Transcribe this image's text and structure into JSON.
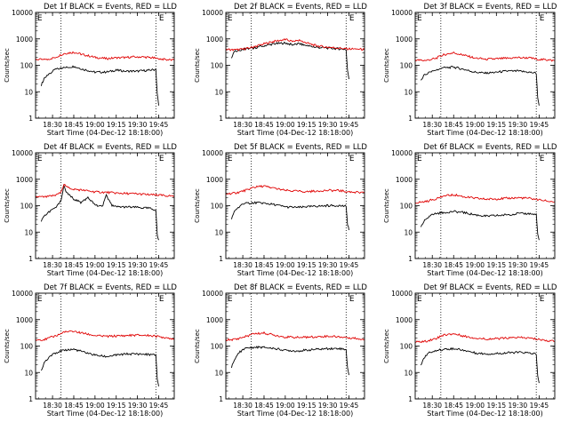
{
  "figure": {
    "xlabel": "Start Time (04-Dec-12 18:18:00)",
    "ylabel": "Counts/sec",
    "x_tick_labels": [
      "18:30",
      "18:45",
      "19:00",
      "19:15",
      "19:30",
      "19:45"
    ],
    "y_tick_labels": [
      "1",
      "10",
      "100",
      "1000",
      "10000"
    ],
    "marker_E": "E",
    "colors": {
      "events": "#000000",
      "lld": "#e00000",
      "axes": "#000000"
    }
  },
  "chart_data": [
    {
      "type": "line",
      "title": "Det 1f BLACK = Events, RED = LLD",
      "xlabel": "Start Time (04-Dec-12 18:18:00)",
      "ylabel": "Counts/sec",
      "y_scale": "log",
      "ylim": [
        1,
        10000
      ],
      "xlim": [
        "18:18",
        "19:56"
      ],
      "grid": false,
      "vertical_dotted_lines": [
        "18:36",
        "19:43"
      ],
      "markers_E": [
        "18:21",
        "19:47"
      ],
      "series": [
        {
          "name": "Events",
          "color": "#000000",
          "x": [
            "18:22",
            "18:24",
            "18:28",
            "18:32",
            "18:38",
            "18:45",
            "18:52",
            "19:00",
            "19:08",
            "19:15",
            "19:22",
            "19:30",
            "19:38",
            "19:43",
            "19:44",
            "19:45"
          ],
          "y": [
            18,
            30,
            50,
            70,
            80,
            90,
            70,
            55,
            55,
            65,
            60,
            60,
            65,
            70,
            8,
            3
          ]
        },
        {
          "name": "LLD",
          "color": "#e00000",
          "x": [
            "18:18",
            "18:25",
            "18:32",
            "18:38",
            "18:45",
            "18:52",
            "19:00",
            "19:08",
            "19:15",
            "19:22",
            "19:30",
            "19:38",
            "19:44",
            "19:50",
            "19:56"
          ],
          "y": [
            170,
            160,
            200,
            280,
            310,
            250,
            200,
            180,
            190,
            200,
            210,
            200,
            180,
            165,
            155
          ]
        }
      ]
    },
    {
      "type": "line",
      "title": "Det 2f BLACK = Events, RED = LLD",
      "xlabel": "Start Time (04-Dec-12 18:18:00)",
      "ylabel": "Counts/sec",
      "y_scale": "log",
      "ylim": [
        1,
        10000
      ],
      "xlim": [
        "18:18",
        "19:56"
      ],
      "grid": false,
      "vertical_dotted_lines": [
        "18:36",
        "19:43"
      ],
      "markers_E": [
        "18:21",
        "19:47"
      ],
      "series": [
        {
          "name": "Events",
          "color": "#000000",
          "x": [
            "18:22",
            "18:24",
            "18:28",
            "18:32",
            "18:38",
            "18:45",
            "18:52",
            "19:00",
            "19:05",
            "19:10",
            "19:15",
            "19:22",
            "19:30",
            "19:38",
            "19:43",
            "19:44",
            "19:45"
          ],
          "y": [
            200,
            350,
            380,
            420,
            450,
            550,
            650,
            700,
            600,
            650,
            550,
            480,
            450,
            420,
            400,
            60,
            30
          ]
        },
        {
          "name": "LLD",
          "color": "#e00000",
          "x": [
            "18:18",
            "18:25",
            "18:32",
            "18:38",
            "18:45",
            "18:52",
            "19:00",
            "19:05",
            "19:10",
            "19:15",
            "19:22",
            "19:30",
            "19:38",
            "19:44",
            "19:50",
            "19:56"
          ],
          "y": [
            400,
            380,
            420,
            500,
            650,
            800,
            950,
            800,
            900,
            700,
            550,
            480,
            450,
            420,
            410,
            400
          ]
        }
      ]
    },
    {
      "type": "line",
      "title": "Det 3f BLACK = Events, RED = LLD",
      "xlabel": "Start Time (04-Dec-12 18:18:00)",
      "ylabel": "Counts/sec",
      "y_scale": "log",
      "ylim": [
        1,
        10000
      ],
      "xlim": [
        "18:18",
        "19:56"
      ],
      "grid": false,
      "vertical_dotted_lines": [
        "18:36",
        "19:43"
      ],
      "markers_E": [
        "18:21",
        "19:47"
      ],
      "series": [
        {
          "name": "Events",
          "color": "#000000",
          "x": [
            "18:22",
            "18:24",
            "18:28",
            "18:32",
            "18:38",
            "18:45",
            "18:52",
            "19:00",
            "19:08",
            "19:15",
            "19:22",
            "19:30",
            "19:38",
            "19:43",
            "19:44",
            "19:45"
          ],
          "y": [
            25,
            40,
            55,
            65,
            80,
            85,
            70,
            55,
            50,
            55,
            60,
            60,
            55,
            50,
            6,
            3
          ]
        },
        {
          "name": "LLD",
          "color": "#e00000",
          "x": [
            "18:18",
            "18:25",
            "18:32",
            "18:38",
            "18:45",
            "18:52",
            "19:00",
            "19:08",
            "19:15",
            "19:22",
            "19:30",
            "19:38",
            "19:44",
            "19:50",
            "19:56"
          ],
          "y": [
            160,
            150,
            180,
            250,
            300,
            240,
            190,
            170,
            175,
            185,
            195,
            190,
            170,
            160,
            150
          ]
        }
      ]
    },
    {
      "type": "line",
      "title": "Det 4f BLACK = Events, RED = LLD",
      "xlabel": "Start Time (04-Dec-12 18:18:00)",
      "ylabel": "Counts/sec",
      "y_scale": "log",
      "ylim": [
        1,
        10000
      ],
      "xlim": [
        "18:18",
        "19:56"
      ],
      "grid": false,
      "vertical_dotted_lines": [
        "18:36",
        "19:43"
      ],
      "markers_E": [
        "18:21",
        "19:47"
      ],
      "series": [
        {
          "name": "Events",
          "color": "#000000",
          "x": [
            "18:22",
            "18:24",
            "18:28",
            "18:32",
            "18:36",
            "18:38",
            "18:40",
            "18:45",
            "18:50",
            "18:55",
            "19:00",
            "19:05",
            "19:08",
            "19:12",
            "19:15",
            "19:22",
            "19:30",
            "19:38",
            "19:43",
            "19:44",
            "19:45"
          ],
          "y": [
            25,
            40,
            60,
            80,
            150,
            550,
            300,
            180,
            130,
            200,
            110,
            90,
            250,
            100,
            90,
            90,
            85,
            80,
            70,
            8,
            5
          ]
        },
        {
          "name": "LLD",
          "color": "#e00000",
          "x": [
            "18:18",
            "18:25",
            "18:32",
            "18:36",
            "18:38",
            "18:40",
            "18:45",
            "18:52",
            "19:00",
            "19:08",
            "19:15",
            "19:22",
            "19:30",
            "19:38",
            "19:44",
            "19:50",
            "19:56"
          ],
          "y": [
            220,
            210,
            250,
            320,
            650,
            500,
            420,
            380,
            330,
            320,
            300,
            290,
            280,
            260,
            250,
            240,
            230
          ]
        }
      ]
    },
    {
      "type": "line",
      "title": "Det 5f BLACK = Events, RED = LLD",
      "xlabel": "Start Time (04-Dec-12 18:18:00)",
      "ylabel": "Counts/sec",
      "y_scale": "log",
      "ylim": [
        1,
        10000
      ],
      "xlim": [
        "18:18",
        "19:56"
      ],
      "grid": false,
      "vertical_dotted_lines": [
        "18:36",
        "19:43"
      ],
      "markers_E": [
        "18:21",
        "19:47"
      ],
      "series": [
        {
          "name": "Events",
          "color": "#000000",
          "x": [
            "18:22",
            "18:24",
            "18:28",
            "18:32",
            "18:38",
            "18:45",
            "18:52",
            "19:00",
            "19:08",
            "19:15",
            "19:22",
            "19:30",
            "19:38",
            "19:43",
            "19:44",
            "19:45"
          ],
          "y": [
            30,
            60,
            100,
            120,
            130,
            125,
            110,
            90,
            85,
            90,
            95,
            100,
            100,
            95,
            20,
            12
          ]
        },
        {
          "name": "LLD",
          "color": "#e00000",
          "x": [
            "18:18",
            "18:25",
            "18:32",
            "18:38",
            "18:45",
            "18:52",
            "19:00",
            "19:08",
            "19:15",
            "19:22",
            "19:30",
            "19:38",
            "19:44",
            "19:50",
            "19:56"
          ],
          "y": [
            280,
            300,
            380,
            500,
            550,
            450,
            380,
            350,
            340,
            360,
            380,
            370,
            340,
            320,
            300
          ]
        }
      ]
    },
    {
      "type": "line",
      "title": "Det 6f BLACK = Events, RED = LLD",
      "xlabel": "Start Time (04-Dec-12 18:18:00)",
      "ylabel": "Counts/sec",
      "y_scale": "log",
      "ylim": [
        1,
        10000
      ],
      "xlim": [
        "18:18",
        "19:56"
      ],
      "grid": false,
      "vertical_dotted_lines": [
        "18:36",
        "19:43"
      ],
      "markers_E": [
        "18:21",
        "19:47"
      ],
      "series": [
        {
          "name": "Events",
          "color": "#000000",
          "x": [
            "18:22",
            "18:24",
            "18:28",
            "18:32",
            "18:38",
            "18:45",
            "18:52",
            "19:00",
            "19:08",
            "19:15",
            "19:22",
            "19:30",
            "19:38",
            "19:43",
            "19:44",
            "19:45"
          ],
          "y": [
            15,
            25,
            40,
            50,
            55,
            60,
            55,
            45,
            40,
            42,
            45,
            50,
            50,
            45,
            8,
            5
          ]
        },
        {
          "name": "LLD",
          "color": "#e00000",
          "x": [
            "18:18",
            "18:25",
            "18:32",
            "18:38",
            "18:45",
            "18:52",
            "19:00",
            "19:08",
            "19:15",
            "19:22",
            "19:30",
            "19:38",
            "19:44",
            "19:50",
            "19:56"
          ],
          "y": [
            130,
            140,
            180,
            230,
            260,
            220,
            190,
            175,
            180,
            190,
            200,
            190,
            170,
            150,
            140
          ]
        }
      ]
    },
    {
      "type": "line",
      "title": "Det 7f BLACK = Events, RED = LLD",
      "xlabel": "Start Time (04-Dec-12 18:18:00)",
      "ylabel": "Counts/sec",
      "y_scale": "log",
      "ylim": [
        1,
        10000
      ],
      "xlim": [
        "18:18",
        "19:56"
      ],
      "grid": false,
      "vertical_dotted_lines": [
        "18:36",
        "19:43"
      ],
      "markers_E": [
        "18:21",
        "19:47"
      ],
      "series": [
        {
          "name": "Events",
          "color": "#000000",
          "x": [
            "18:22",
            "18:24",
            "18:28",
            "18:32",
            "18:38",
            "18:45",
            "18:52",
            "19:00",
            "19:08",
            "19:15",
            "19:22",
            "19:30",
            "19:38",
            "19:43",
            "19:44",
            "19:45"
          ],
          "y": [
            12,
            22,
            40,
            55,
            70,
            75,
            60,
            45,
            40,
            45,
            50,
            50,
            48,
            45,
            6,
            3
          ]
        },
        {
          "name": "LLD",
          "color": "#e00000",
          "x": [
            "18:18",
            "18:25",
            "18:32",
            "18:38",
            "18:45",
            "18:52",
            "19:00",
            "19:08",
            "19:15",
            "19:22",
            "19:30",
            "19:38",
            "19:44",
            "19:50",
            "19:56"
          ],
          "y": [
            170,
            180,
            240,
            330,
            360,
            300,
            250,
            230,
            240,
            250,
            260,
            250,
            230,
            210,
            190
          ]
        }
      ]
    },
    {
      "type": "line",
      "title": "Det 8f BLACK = Events, RED = LLD",
      "xlabel": "Start Time (04-Dec-12 18:18:00)",
      "ylabel": "Counts/sec",
      "y_scale": "log",
      "ylim": [
        1,
        10000
      ],
      "xlim": [
        "18:18",
        "19:56"
      ],
      "grid": false,
      "vertical_dotted_lines": [
        "18:36",
        "19:43"
      ],
      "markers_E": [
        "18:21",
        "19:47"
      ],
      "series": [
        {
          "name": "Events",
          "color": "#000000",
          "x": [
            "18:22",
            "18:24",
            "18:28",
            "18:32",
            "18:38",
            "18:45",
            "18:52",
            "19:00",
            "19:08",
            "19:15",
            "19:22",
            "19:30",
            "19:38",
            "19:43",
            "19:44",
            "19:45"
          ],
          "y": [
            15,
            30,
            60,
            80,
            90,
            90,
            80,
            70,
            65,
            70,
            75,
            80,
            80,
            75,
            15,
            8
          ]
        },
        {
          "name": "LLD",
          "color": "#e00000",
          "x": [
            "18:18",
            "18:25",
            "18:32",
            "18:38",
            "18:45",
            "18:52",
            "19:00",
            "19:08",
            "19:15",
            "19:22",
            "19:30",
            "19:38",
            "19:44",
            "19:50",
            "19:56"
          ],
          "y": [
            170,
            180,
            230,
            290,
            310,
            260,
            220,
            210,
            215,
            225,
            235,
            225,
            210,
            195,
            180
          ]
        }
      ]
    },
    {
      "type": "line",
      "title": "Det 9f BLACK = Events, RED = LLD",
      "xlabel": "Start Time (04-Dec-12 18:18:00)",
      "ylabel": "Counts/sec",
      "y_scale": "log",
      "ylim": [
        1,
        10000
      ],
      "xlim": [
        "18:18",
        "19:56"
      ],
      "grid": false,
      "vertical_dotted_lines": [
        "18:36",
        "19:43"
      ],
      "markers_E": [
        "18:21",
        "19:47"
      ],
      "series": [
        {
          "name": "Events",
          "color": "#000000",
          "x": [
            "18:22",
            "18:24",
            "18:28",
            "18:32",
            "18:38",
            "18:45",
            "18:52",
            "19:00",
            "19:08",
            "19:15",
            "19:22",
            "19:30",
            "19:38",
            "19:43",
            "19:44",
            "19:45"
          ],
          "y": [
            20,
            35,
            55,
            65,
            75,
            80,
            70,
            55,
            50,
            52,
            55,
            58,
            55,
            50,
            8,
            4
          ]
        },
        {
          "name": "LLD",
          "color": "#e00000",
          "x": [
            "18:18",
            "18:25",
            "18:32",
            "18:38",
            "18:45",
            "18:52",
            "19:00",
            "19:08",
            "19:15",
            "19:22",
            "19:30",
            "19:38",
            "19:44",
            "19:50",
            "19:56"
          ],
          "y": [
            140,
            150,
            190,
            260,
            290,
            240,
            200,
            185,
            190,
            200,
            210,
            200,
            180,
            165,
            150
          ]
        }
      ]
    }
  ]
}
